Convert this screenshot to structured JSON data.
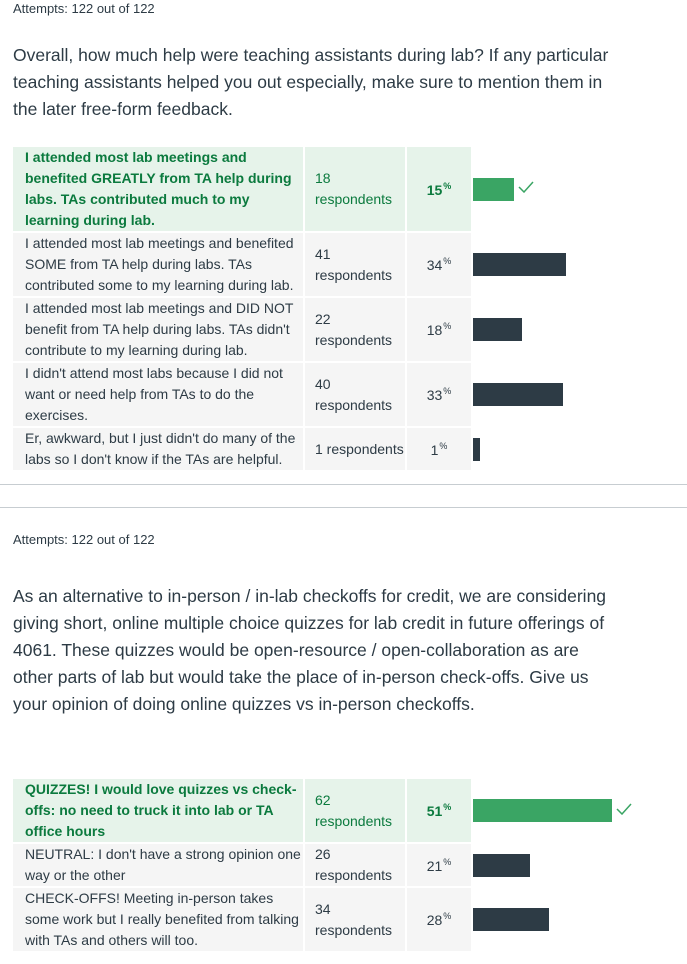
{
  "questions": [
    {
      "attempts": "Attempts: 122 out of 122",
      "question": "Overall, how much help were teaching assistants during lab? If any particular teaching assistants helped you out especially, make sure to mention them in the later free-form feedback.",
      "answers": [
        {
          "text": "I attended most lab meetings and benefited GREATLY from TA help during labs. TAs contributed much to my learning during lab.",
          "respondents": "18 respondents",
          "percent": "15",
          "fraction": 0.15,
          "correct": true
        },
        {
          "text": "I attended most lab meetings and benefited SOME from TA help during labs. TAs contributed some to my learning during lab.",
          "respondents": "41 respondents",
          "percent": "34",
          "fraction": 0.34,
          "correct": false
        },
        {
          "text": "I attended most lab meetings and DID NOT benefit from TA help during labs. TAs didn't contribute to my learning during lab.",
          "respondents": "22 respondents",
          "percent": "18",
          "fraction": 0.18,
          "correct": false
        },
        {
          "text": "I didn't attend most labs because I did not want or need help from TAs to do the exercises.",
          "respondents": "40 respondents",
          "percent": "33",
          "fraction": 0.33,
          "correct": false
        },
        {
          "text": "Er, awkward, but I just didn't do many of the labs so I don't know if the TAs are helpful.",
          "respondents": "1 respondents",
          "percent": "1",
          "fraction": 0.01,
          "correct": false
        }
      ]
    },
    {
      "attempts": "Attempts: 122 out of 122",
      "question": "As an alternative to in-person / in-lab checkoffs for credit, we are considering giving short, online multiple choice quizzes for lab credit in future offerings of 4061. These quizzes would be open-resource / open-collaboration as are other parts of lab but would take the place of in-person check-offs. Give us your opinion of doing online quizzes vs in-person checkoffs.",
      "answers": [
        {
          "text": "QUIZZES! I would love quizzes vs check-offs: no need to truck it into lab or TA office hours",
          "respondents": "62 respondents",
          "percent": "51",
          "fraction": 0.51,
          "correct": true
        },
        {
          "text": "NEUTRAL: I don't have a strong opinion one way or the other",
          "respondents": "26 respondents",
          "percent": "21",
          "fraction": 0.21,
          "correct": false
        },
        {
          "text": "CHECK-OFFS! Meeting in-person takes some work but I really benefited from talking with TAs and others will too.",
          "respondents": "34 respondents",
          "percent": "28",
          "fraction": 0.28,
          "correct": false
        }
      ]
    }
  ],
  "percent_symbol": "%",
  "icons": {
    "correct": "check-icon"
  },
  "colors": {
    "correct_bar": "#3aa564",
    "bar": "#2d3b45",
    "correct_bg": "#e6f3ea",
    "correct_text": "#0b7a3e"
  }
}
